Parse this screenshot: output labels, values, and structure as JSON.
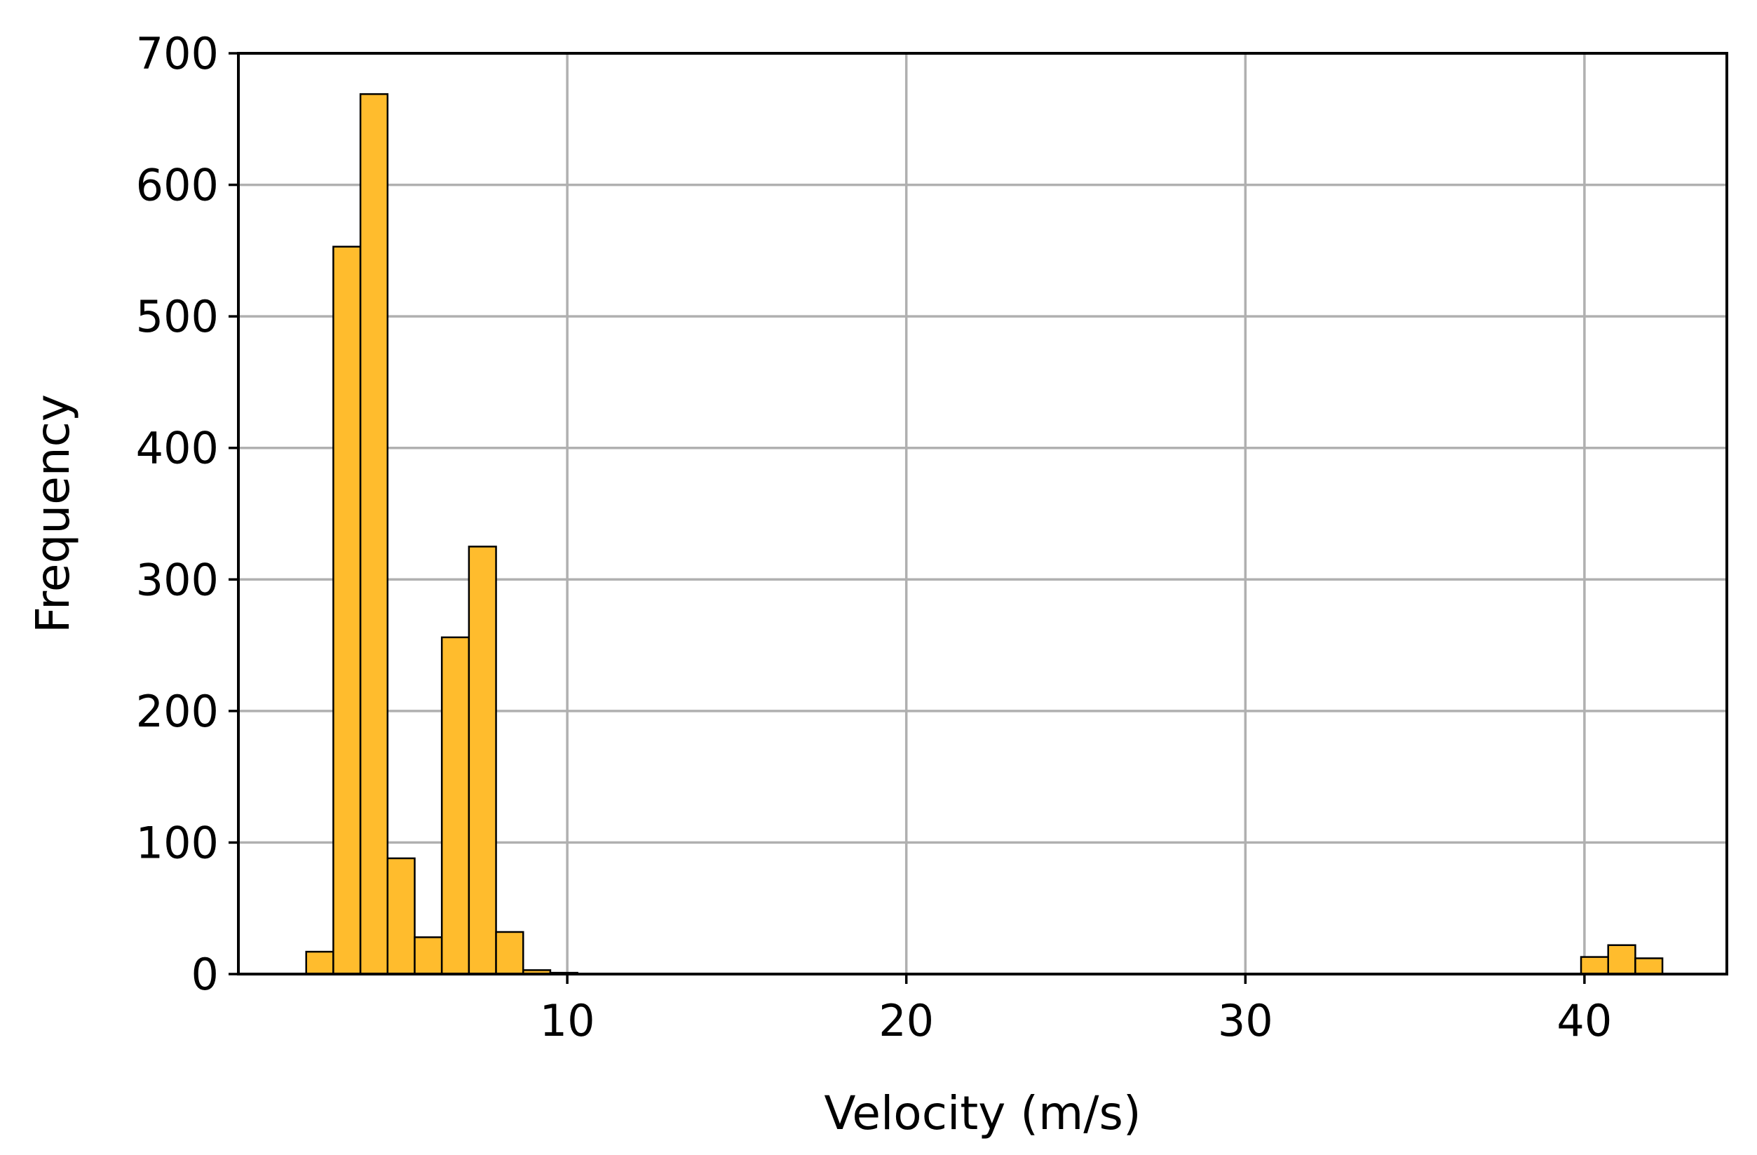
{
  "chart_data": {
    "type": "bar",
    "xlabel": "Velocity (m/s)",
    "ylabel": "Frequency",
    "xlim": [
      0.3,
      44.2
    ],
    "ylim": [
      0,
      700
    ],
    "xticks": [
      10,
      20,
      30,
      40
    ],
    "yticks": [
      0,
      100,
      200,
      300,
      400,
      500,
      600,
      700
    ],
    "grid": true,
    "bar_color": "#FFBC2D",
    "edge_color": "#000000",
    "bins": [
      {
        "x0": 2.3,
        "x1": 3.1,
        "count": 17
      },
      {
        "x0": 3.1,
        "x1": 3.9,
        "count": 553
      },
      {
        "x0": 3.9,
        "x1": 4.7,
        "count": 669
      },
      {
        "x0": 4.7,
        "x1": 5.5,
        "count": 88
      },
      {
        "x0": 5.5,
        "x1": 6.3,
        "count": 28
      },
      {
        "x0": 6.3,
        "x1": 7.1,
        "count": 256
      },
      {
        "x0": 7.1,
        "x1": 7.9,
        "count": 325
      },
      {
        "x0": 7.9,
        "x1": 8.7,
        "count": 32
      },
      {
        "x0": 8.7,
        "x1": 9.5,
        "count": 3
      },
      {
        "x0": 9.5,
        "x1": 10.3,
        "count": 1
      },
      {
        "x0": 39.9,
        "x1": 40.7,
        "count": 13
      },
      {
        "x0": 40.7,
        "x1": 41.5,
        "count": 22
      },
      {
        "x0": 41.5,
        "x1": 42.3,
        "count": 12
      }
    ]
  }
}
